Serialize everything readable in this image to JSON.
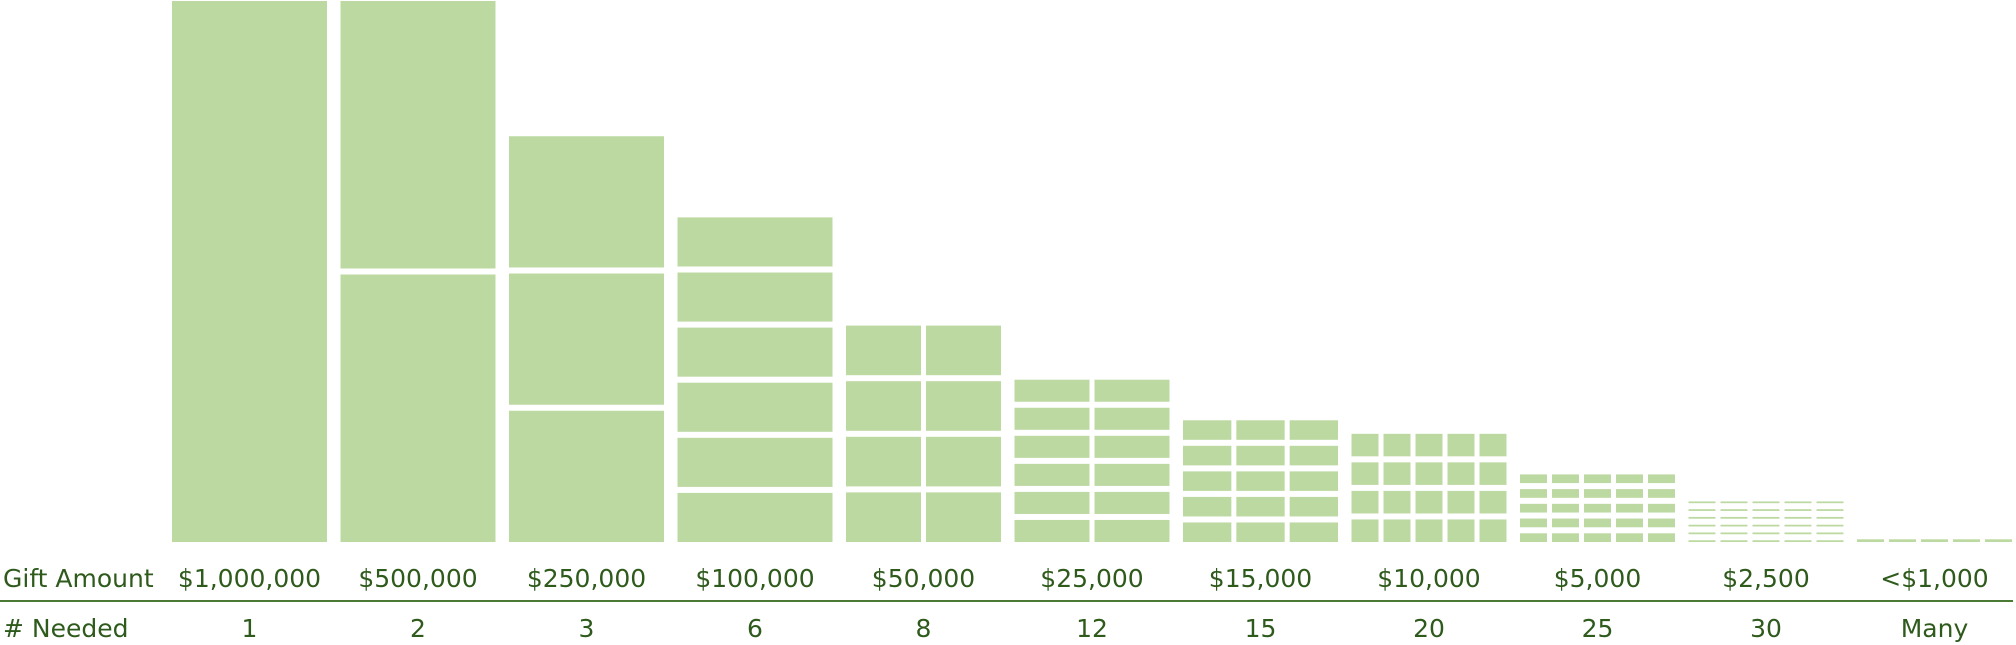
{
  "chart_data": {
    "type": "bar",
    "title": "",
    "row_labels": {
      "amount": "Gift Amount",
      "needed": "# Needed"
    },
    "categories": [
      "$1,000,000",
      "$500,000",
      "$250,000",
      "$100,000",
      "$50,000",
      "$25,000",
      "$15,000",
      "$10,000",
      "$5,000",
      "$2,500",
      "<$1,000"
    ],
    "gift_values": [
      1000000,
      500000,
      250000,
      100000,
      50000,
      25000,
      15000,
      10000,
      5000,
      2500,
      1000
    ],
    "needed_labels": [
      "1",
      "2",
      "3",
      "6",
      "8",
      "12",
      "15",
      "20",
      "25",
      "30",
      "Many"
    ],
    "needed_counts": [
      1,
      2,
      3,
      6,
      8,
      12,
      15,
      20,
      25,
      30,
      5
    ],
    "grid_columns": [
      1,
      1,
      1,
      1,
      2,
      2,
      3,
      5,
      5,
      5,
      5
    ],
    "totals": [
      1000000,
      1000000,
      750000,
      600000,
      400000,
      300000,
      225000,
      200000,
      125000,
      75000,
      5000
    ],
    "ylim": [
      0,
      1000000
    ],
    "colors": {
      "cell": "#bdd9a2",
      "text": "#2e5a1c",
      "rule": "#4a7a34"
    }
  }
}
